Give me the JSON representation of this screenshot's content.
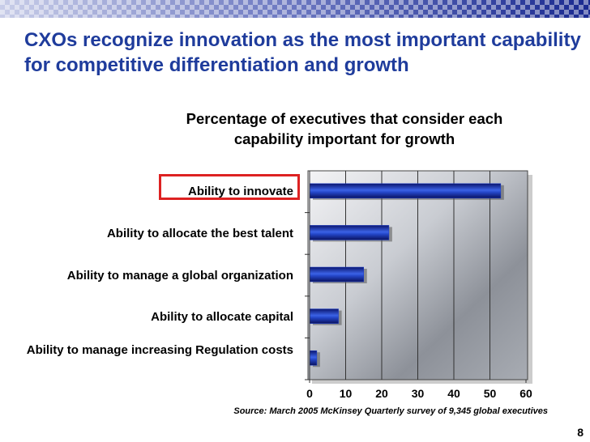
{
  "title": "CXOs recognize innovation as the most important capability for competitive differentiation and growth",
  "chart_data": {
    "type": "hbar",
    "title": "Percentage of executives that consider each capability important for growth",
    "categories": [
      "Ability to innovate",
      "Ability to allocate the best talent",
      "Ability to manage a global organization",
      "Ability to allocate capital",
      "Ability to manage increasing Regulation costs"
    ],
    "values": [
      53,
      22,
      15,
      8,
      2
    ],
    "color": "#1a3cc8",
    "xlim": [
      0,
      60
    ],
    "xticks": [
      0,
      10,
      20,
      30,
      40,
      50,
      60
    ],
    "grid": true
  },
  "source": "Source: March 2005 McKinsey Quarterly survey of 9,345 global executives",
  "page_number": "8"
}
